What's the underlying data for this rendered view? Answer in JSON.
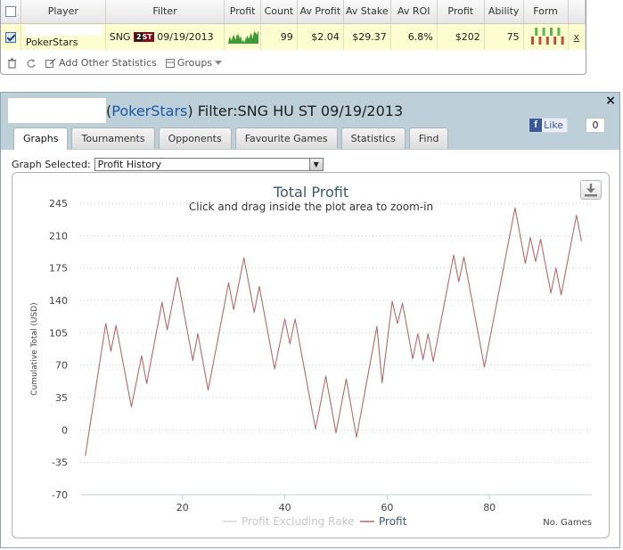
{
  "stats_table": {
    "columns": [
      "",
      "Player",
      "Filter",
      "Profit",
      "Count",
      "Av Profit",
      "Av Stake",
      "Av ROI",
      "Profit",
      "Ability",
      "Form",
      ""
    ],
    "row": {
      "site": "PokerStars",
      "filter_prefix": "SNG",
      "filter_badge_num": "2",
      "filter_badge_text": "ST",
      "filter_date": "09/19/2013",
      "count": "99",
      "av_profit": "$2.04",
      "av_stake": "$29.37",
      "av_roi": "6.8%",
      "profit": "$202",
      "ability": "75",
      "remove": "x"
    },
    "toolbar": {
      "add_stats": "Add Other Statistics",
      "groups": "Groups"
    },
    "colors": {
      "row_bg": "#fdfdd0",
      "sparkline": "#3e9a37",
      "form_win": "#52b848",
      "form_loss": "#c0503a"
    },
    "form": [
      "loss",
      "win",
      "loss",
      "win",
      "loss",
      "win",
      "loss",
      "win",
      "loss"
    ]
  },
  "window": {
    "title_site": "PokerStars",
    "title_rest": " Filter:SNG HU ST 09/19/2013",
    "title_open": "(",
    "title_close": ")",
    "close": "×",
    "fb_like": "Like",
    "fb_logo": "f",
    "fb_count": "0",
    "tabs": [
      "Graphs",
      "Tournaments",
      "Opponents",
      "Favourite Games",
      "Statistics",
      "Find"
    ],
    "active_tab": 0,
    "graph_selected_label": "Graph Selected:",
    "graph_selected_value": "Profit History"
  },
  "chart_data": {
    "type": "line",
    "title": "Total Profit",
    "subtitle": "Click and drag inside the plot area to zoom-in",
    "ylabel": "Cumulative Total (USD)",
    "xlabel": "No. Games",
    "ylim": [
      -70,
      245
    ],
    "xlim": [
      0,
      100
    ],
    "yticks": [
      -70,
      -35,
      0,
      35,
      70,
      105,
      140,
      175,
      210,
      245
    ],
    "xticks": [
      20,
      40,
      60,
      80
    ],
    "grid": true,
    "legend_placement": "bottom",
    "legend": [
      {
        "name": "Profit Excluding Rake",
        "color": "#d6d6d6"
      },
      {
        "name": "Profit",
        "color": "#b46a6a"
      }
    ],
    "series": [
      {
        "name": "Profit",
        "color": "#b46a6a",
        "points": [
          [
            1,
            -28
          ],
          [
            5,
            115
          ],
          [
            6,
            85
          ],
          [
            7,
            113
          ],
          [
            10,
            25
          ],
          [
            12,
            80
          ],
          [
            13,
            50
          ],
          [
            16,
            138
          ],
          [
            17,
            108
          ],
          [
            19,
            165
          ],
          [
            22,
            75
          ],
          [
            23,
            104
          ],
          [
            25,
            43
          ],
          [
            29,
            159
          ],
          [
            30,
            130
          ],
          [
            32,
            186
          ],
          [
            34,
            127
          ],
          [
            35,
            155
          ],
          [
            38,
            66
          ],
          [
            40,
            120
          ],
          [
            41,
            93
          ],
          [
            42,
            120
          ],
          [
            46,
            1
          ],
          [
            48,
            58
          ],
          [
            50,
            -3
          ],
          [
            52,
            55
          ],
          [
            54,
            -8
          ],
          [
            58,
            112
          ],
          [
            59,
            51
          ],
          [
            61,
            139
          ],
          [
            62,
            115
          ],
          [
            63,
            137
          ],
          [
            65,
            77
          ],
          [
            66,
            104
          ],
          [
            67,
            76
          ],
          [
            68,
            104
          ],
          [
            69,
            74
          ],
          [
            73,
            189
          ],
          [
            74,
            160
          ],
          [
            75,
            187
          ],
          [
            79,
            68
          ],
          [
            85,
            240
          ],
          [
            87,
            180
          ],
          [
            88,
            208
          ],
          [
            89,
            182
          ],
          [
            90,
            206
          ],
          [
            92,
            148
          ],
          [
            93,
            175
          ],
          [
            94,
            146
          ],
          [
            97,
            232
          ],
          [
            98,
            204
          ]
        ]
      },
      {
        "name": "Profit Excluding Rake",
        "color": "#d6d6d6",
        "points": []
      }
    ]
  }
}
